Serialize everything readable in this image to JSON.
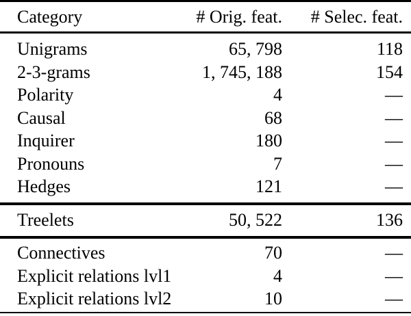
{
  "table": {
    "header": {
      "category": "Category",
      "orig": "# Orig. feat.",
      "selec": "# Selec. feat."
    },
    "groups": [
      [
        {
          "category": "Unigrams",
          "orig": "65, 798",
          "selec": "118"
        },
        {
          "category": "2-3-grams",
          "orig": "1, 745, 188",
          "selec": "154"
        },
        {
          "category": "Polarity",
          "orig": "4",
          "selec": "—"
        },
        {
          "category": "Causal",
          "orig": "68",
          "selec": "—"
        },
        {
          "category": "Inquirer",
          "orig": "180",
          "selec": "—"
        },
        {
          "category": "Pronouns",
          "orig": "7",
          "selec": "—"
        },
        {
          "category": "Hedges",
          "orig": "121",
          "selec": "—"
        }
      ],
      [
        {
          "category": "Treelets",
          "orig": "50, 522",
          "selec": "136"
        }
      ],
      [
        {
          "category": "Connectives",
          "orig": "70",
          "selec": "—"
        },
        {
          "category": "Explicit relations lvl1",
          "orig": "4",
          "selec": "—"
        },
        {
          "category": "Explicit relations lvl2",
          "orig": "10",
          "selec": "—"
        }
      ]
    ],
    "colors": {
      "text": "#000000",
      "background": "#ffffff",
      "rule": "#000000"
    }
  }
}
